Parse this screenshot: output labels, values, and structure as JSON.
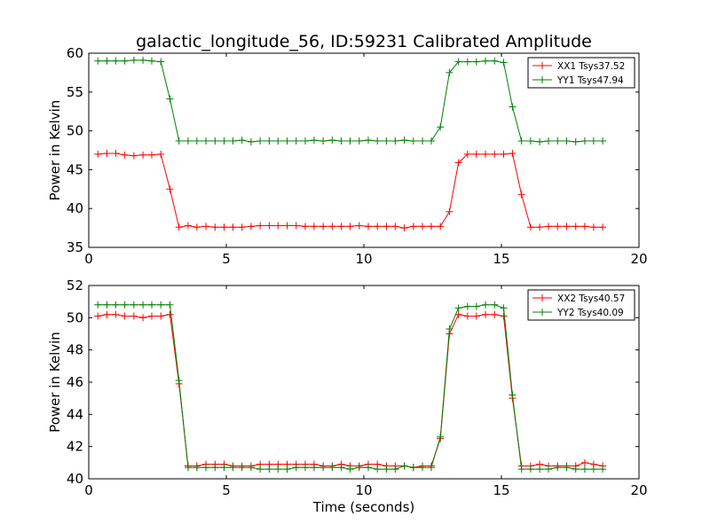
{
  "title": "galactic_longitude_56, ID:59231 Calibrated Amplitude",
  "chart_data": [
    {
      "type": "line",
      "title": "galactic_longitude_56, ID:59231 Calibrated Amplitude",
      "xlabel": "",
      "ylabel": "Power in Kelvin",
      "xlim": [
        0,
        20
      ],
      "ylim": [
        35,
        60
      ],
      "xticks": [
        0,
        5,
        10,
        15,
        20
      ],
      "yticks": [
        35,
        40,
        45,
        50,
        55,
        60
      ],
      "xtick_labels": [
        "0",
        "5",
        "10",
        "15",
        "20"
      ],
      "ytick_labels": [
        "35",
        "40",
        "45",
        "50",
        "55",
        "60"
      ],
      "grid": false,
      "legend_position": "top-right",
      "x": [
        0.33,
        0.66,
        0.98,
        1.31,
        1.64,
        1.97,
        2.29,
        2.62,
        2.95,
        3.28,
        3.61,
        3.93,
        4.26,
        4.59,
        4.92,
        5.24,
        5.57,
        5.9,
        6.23,
        6.56,
        6.88,
        7.21,
        7.54,
        7.87,
        8.19,
        8.52,
        8.85,
        9.18,
        9.5,
        9.83,
        10.16,
        10.49,
        10.82,
        11.14,
        11.47,
        11.8,
        12.13,
        12.45,
        12.78,
        13.11,
        13.44,
        13.77,
        14.09,
        14.42,
        14.75,
        15.08,
        15.4,
        15.73,
        16.06,
        16.39,
        16.71,
        17.04,
        17.37,
        17.7,
        18.03,
        18.35,
        18.68
      ],
      "series": [
        {
          "name": "XX1 Tsys37.52",
          "color": "#ff0000",
          "values": [
            47.0,
            47.1,
            47.1,
            46.9,
            46.8,
            46.9,
            46.9,
            47.0,
            42.5,
            37.6,
            37.8,
            37.6,
            37.7,
            37.6,
            37.6,
            37.6,
            37.6,
            37.7,
            37.8,
            37.8,
            37.8,
            37.8,
            37.8,
            37.7,
            37.7,
            37.7,
            37.7,
            37.7,
            37.7,
            37.8,
            37.7,
            37.7,
            37.7,
            37.7,
            37.5,
            37.7,
            37.7,
            37.7,
            37.7,
            39.6,
            45.9,
            47.0,
            47.0,
            47.0,
            47.0,
            47.0,
            47.1,
            41.8,
            37.6,
            37.6,
            37.7,
            37.7,
            37.7,
            37.7,
            37.7,
            37.6,
            37.6
          ]
        },
        {
          "name": "YY1 Tsys47.94",
          "color": "#008000",
          "values": [
            59.0,
            59.0,
            59.0,
            59.0,
            59.1,
            59.1,
            59.0,
            58.9,
            54.1,
            48.7,
            48.7,
            48.7,
            48.7,
            48.7,
            48.7,
            48.7,
            48.8,
            48.6,
            48.7,
            48.7,
            48.7,
            48.7,
            48.7,
            48.7,
            48.8,
            48.7,
            48.8,
            48.7,
            48.7,
            48.7,
            48.8,
            48.7,
            48.7,
            48.7,
            48.8,
            48.7,
            48.7,
            48.7,
            50.5,
            57.5,
            58.9,
            58.9,
            58.9,
            59.0,
            59.0,
            58.8,
            53.1,
            48.7,
            48.7,
            48.6,
            48.7,
            48.7,
            48.7,
            48.6,
            48.7,
            48.7,
            48.7
          ]
        }
      ]
    },
    {
      "type": "line",
      "title": "",
      "xlabel": "Time (seconds)",
      "ylabel": "Power in Kelvin",
      "xlim": [
        0,
        20
      ],
      "ylim": [
        40,
        52
      ],
      "xticks": [
        0,
        5,
        10,
        15,
        20
      ],
      "yticks": [
        40,
        42,
        44,
        46,
        48,
        50,
        52
      ],
      "xtick_labels": [
        "0",
        "5",
        "10",
        "15",
        "20"
      ],
      "ytick_labels": [
        "40",
        "42",
        "44",
        "46",
        "48",
        "50",
        "52"
      ],
      "grid": false,
      "legend_position": "top-right",
      "x": [
        0.33,
        0.66,
        0.98,
        1.31,
        1.64,
        1.97,
        2.29,
        2.62,
        2.95,
        3.28,
        3.61,
        3.93,
        4.26,
        4.59,
        4.92,
        5.24,
        5.57,
        5.9,
        6.23,
        6.56,
        6.88,
        7.21,
        7.54,
        7.87,
        8.19,
        8.52,
        8.85,
        9.18,
        9.5,
        9.83,
        10.16,
        10.49,
        10.82,
        11.14,
        11.47,
        11.8,
        12.13,
        12.45,
        12.78,
        13.11,
        13.44,
        13.77,
        14.09,
        14.42,
        14.75,
        15.08,
        15.4,
        15.73,
        16.06,
        16.39,
        16.71,
        17.04,
        17.37,
        17.7,
        18.03,
        18.35,
        18.68
      ],
      "series": [
        {
          "name": "XX2 Tsys40.57",
          "color": "#ff0000",
          "values": [
            50.1,
            50.2,
            50.2,
            50.1,
            50.1,
            50.0,
            50.1,
            50.1,
            50.2,
            45.9,
            40.8,
            40.8,
            40.9,
            40.9,
            40.9,
            40.8,
            40.8,
            40.8,
            40.9,
            40.9,
            40.9,
            40.9,
            40.9,
            40.9,
            40.9,
            40.8,
            40.8,
            40.9,
            40.8,
            40.8,
            40.9,
            40.9,
            40.8,
            40.8,
            40.8,
            40.7,
            40.8,
            40.8,
            42.5,
            49.0,
            50.2,
            50.1,
            50.1,
            50.2,
            50.2,
            50.1,
            45.0,
            40.8,
            40.8,
            40.9,
            40.8,
            40.8,
            40.8,
            40.8,
            41.0,
            40.9,
            40.8
          ]
        },
        {
          "name": "YY2 Tsys40.09",
          "color": "#008000",
          "values": [
            50.8,
            50.8,
            50.8,
            50.8,
            50.8,
            50.8,
            50.8,
            50.8,
            50.8,
            46.1,
            40.7,
            40.7,
            40.7,
            40.7,
            40.7,
            40.7,
            40.7,
            40.7,
            40.6,
            40.6,
            40.6,
            40.6,
            40.7,
            40.7,
            40.7,
            40.7,
            40.7,
            40.7,
            40.6,
            40.7,
            40.7,
            40.6,
            40.6,
            40.6,
            40.8,
            40.7,
            40.7,
            40.7,
            42.6,
            49.3,
            50.6,
            50.7,
            50.7,
            50.8,
            50.8,
            50.6,
            45.2,
            40.6,
            40.6,
            40.6,
            40.6,
            40.7,
            40.7,
            40.6,
            40.6,
            40.6,
            40.6
          ]
        }
      ]
    }
  ]
}
